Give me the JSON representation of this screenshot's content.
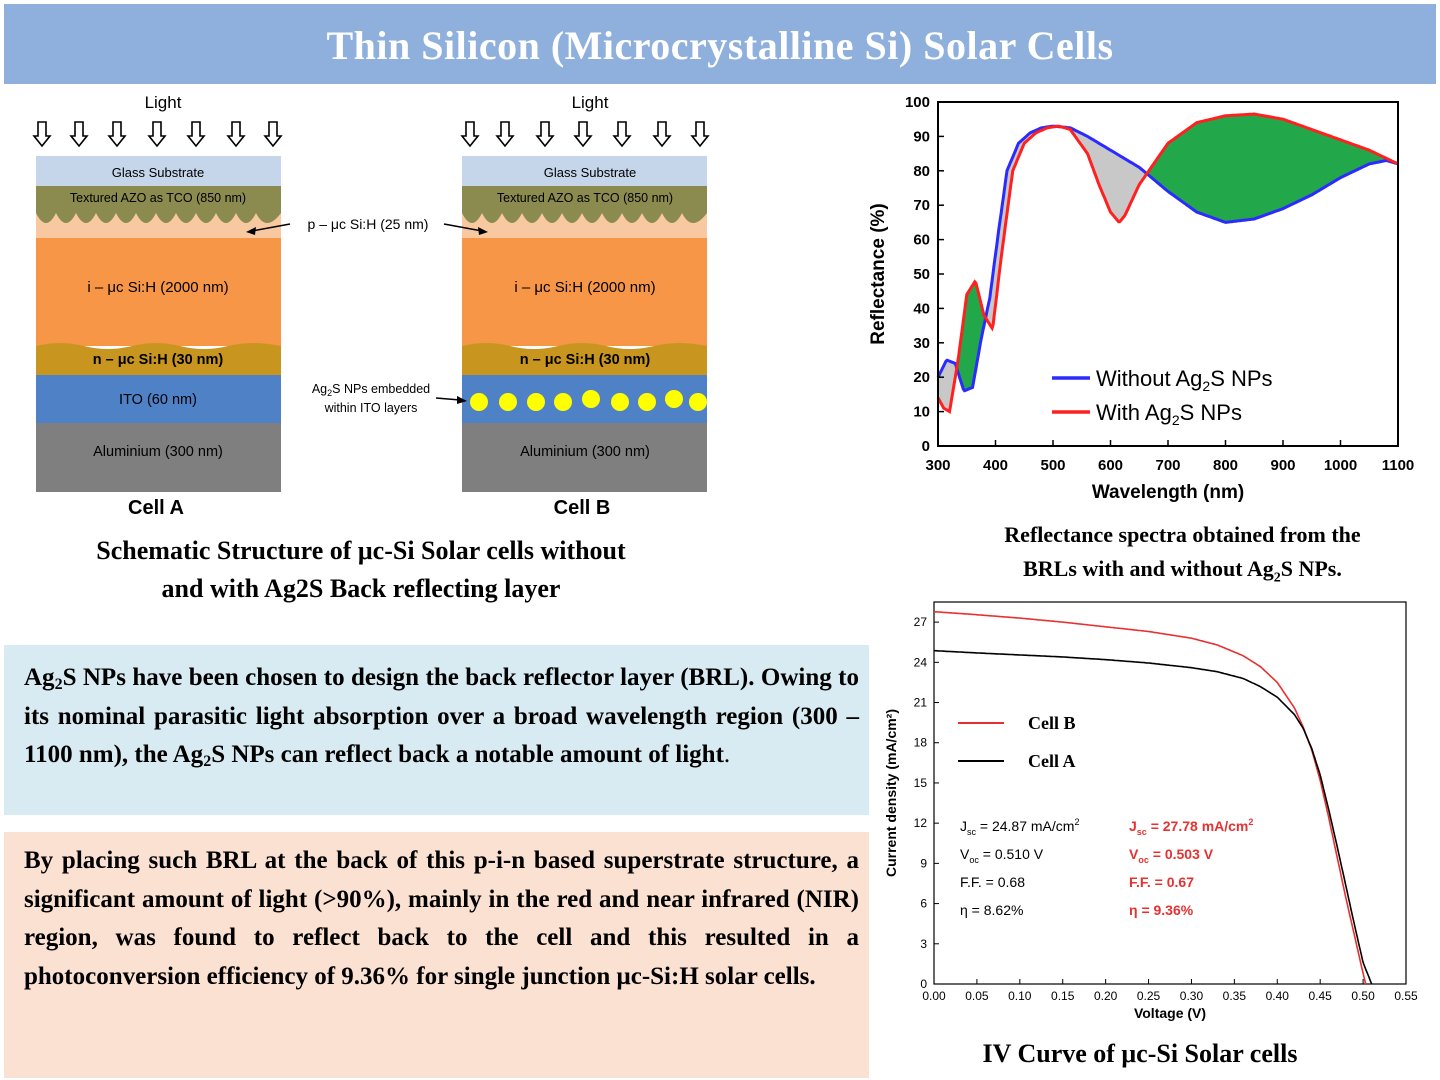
{
  "title": "Thin Silicon (Microcrystalline Si) Solar Cells",
  "schematic": {
    "light_label": "Light",
    "cell_a": {
      "name": "Cell A",
      "layers": {
        "glass": "Glass Substrate",
        "azo": "Textured AZO as TCO (850 nm)",
        "i_layer": "i – μc Si:H (2000 nm)",
        "n_layer": "n – μc Si:H (30 nm)",
        "ito": "ITO (60 nm)",
        "al": "Aluminium (300 nm)"
      }
    },
    "cell_b": {
      "name": "Cell B",
      "layers": {
        "glass": "Glass Substrate",
        "azo": "Textured AZO as TCO (850 nm)",
        "i_layer": "i – μc Si:H (2000 nm)",
        "n_layer": "n – μc Si:H (30 nm)",
        "al": "Aluminium (300 nm)"
      }
    },
    "p_layer_label": "p – μc Si:H (25 nm)",
    "np_label_line1": "Ag",
    "np_label_sub": "2",
    "np_label_rest": "S NPs embedded",
    "np_label_line2": "within ITO layers",
    "caption_line1": "Schematic Structure of μc-Si  Solar cells without",
    "caption_line2": "and with Ag2S  Back  reflecting  layer",
    "colors": {
      "glass": "#c5d5ea",
      "azo": "#8b8b50",
      "p": "#f8c8a0",
      "i": "#f79646",
      "n": "#c8961e",
      "ito": "#4f81c7",
      "al": "#7f7f7f",
      "np": "#ffff00"
    }
  },
  "info_box_1": {
    "t1": "Ag",
    "s1": "2",
    "t2": "S NPs have been chosen to design the back reflector layer (BRL). Owing to its nominal parasitic light absorption over a broad wavelength region (300 – 1100 nm), the Ag",
    "s2": "2",
    "t3": "S NPs can reflect back a notable amount of light",
    "t4": "."
  },
  "info_box_2": {
    "text": "By placing such BRL at the back of this p-i-n based superstrate structure, a significant amount of light (>90%), mainly in the red and near infrared (NIR) region, was found to reflect back to the cell and this resulted in a photoconversion efficiency of 9.36% for single junction μc-Si:H solar cells."
  },
  "reflectance_caption": {
    "line1": "Reflectance spectra obtained from the",
    "line2_a": "BRLs with and without Ag",
    "line2_sub": "2",
    "line2_b": "S NPs."
  },
  "iv_caption": "IV Curve of μc-Si  Solar cells",
  "chart_data": [
    {
      "type": "line",
      "xlabel": "Wavelength (nm)",
      "ylabel": "Reflectance (%)",
      "xlim": [
        300,
        1100
      ],
      "ylim": [
        0,
        100
      ],
      "xticks": [
        300,
        400,
        500,
        600,
        700,
        800,
        900,
        1000,
        1100
      ],
      "yticks": [
        0,
        10,
        20,
        30,
        40,
        50,
        60,
        70,
        80,
        90,
        100
      ],
      "legend_position": "bottom-right",
      "fill_colors": {
        "gain": "#22a84a",
        "loss": "#c8c8c8"
      },
      "series": [
        {
          "name_main": "Without Ag",
          "name_sub": "2",
          "name_tail": "S NPs",
          "color": "#2b2bff",
          "x": [
            300,
            315,
            330,
            345,
            360,
            375,
            390,
            405,
            420,
            440,
            460,
            480,
            500,
            530,
            560,
            580,
            600,
            620,
            650,
            700,
            750,
            800,
            850,
            900,
            950,
            1000,
            1050,
            1080,
            1100
          ],
          "y": [
            20,
            25,
            24,
            16,
            17,
            31,
            43,
            62,
            80,
            88,
            91,
            92.5,
            93,
            92.5,
            90,
            88,
            86,
            84,
            81,
            74,
            68,
            65,
            66,
            69,
            73,
            78,
            82,
            83,
            82
          ]
        },
        {
          "name_main": "With Ag",
          "name_sub": "2",
          "name_tail": "S NPs",
          "color": "#ff2020",
          "x": [
            300,
            310,
            320,
            335,
            350,
            365,
            380,
            395,
            410,
            430,
            450,
            470,
            490,
            510,
            530,
            560,
            580,
            600,
            615,
            625,
            650,
            700,
            750,
            800,
            850,
            900,
            950,
            1000,
            1050,
            1100
          ],
          "y": [
            14,
            11,
            10,
            25,
            44,
            48,
            38,
            34,
            55,
            80,
            88,
            91,
            92.5,
            93,
            92,
            85,
            76,
            68,
            65,
            67,
            76,
            88,
            94,
            96,
            96.5,
            95,
            92,
            89,
            86,
            82
          ]
        }
      ]
    },
    {
      "type": "line",
      "xlabel": "Voltage (V)",
      "ylabel": "Current density (mA/cm²)",
      "xlim": [
        0,
        0.55
      ],
      "ylim": [
        0,
        28.5
      ],
      "xticks": [
        "0.00",
        "0.05",
        "0.10",
        "0.15",
        "0.20",
        "0.25",
        "0.30",
        "0.35",
        "0.40",
        "0.45",
        "0.50",
        "0.55"
      ],
      "yticks": [
        0,
        3,
        6,
        9,
        12,
        15,
        18,
        21,
        24,
        27
      ],
      "legend_position": "top-left",
      "series": [
        {
          "name": "Cell B",
          "color": "#e83030",
          "x": [
            0,
            0.05,
            0.1,
            0.15,
            0.2,
            0.25,
            0.3,
            0.33,
            0.36,
            0.38,
            0.4,
            0.42,
            0.43,
            0.44,
            0.45,
            0.46,
            0.47,
            0.48,
            0.49,
            0.5,
            0.503
          ],
          "y": [
            27.78,
            27.55,
            27.3,
            27.0,
            26.65,
            26.3,
            25.8,
            25.3,
            24.5,
            23.7,
            22.5,
            20.6,
            19.2,
            17.5,
            15.2,
            12.4,
            9.4,
            6.4,
            3.6,
            0.8,
            0
          ]
        },
        {
          "name": "Cell A",
          "color": "#000000",
          "x": [
            0,
            0.05,
            0.1,
            0.15,
            0.2,
            0.25,
            0.3,
            0.33,
            0.36,
            0.38,
            0.4,
            0.42,
            0.43,
            0.44,
            0.45,
            0.46,
            0.47,
            0.48,
            0.49,
            0.5,
            0.51
          ],
          "y": [
            24.87,
            24.7,
            24.55,
            24.4,
            24.2,
            23.95,
            23.6,
            23.3,
            22.8,
            22.2,
            21.4,
            20.1,
            19.1,
            17.6,
            15.6,
            13.0,
            10.2,
            7.3,
            4.4,
            1.6,
            0
          ]
        }
      ],
      "annotations": {
        "cellA": {
          "jsc": "J",
          "jsc_sub": "sc",
          "jsc_val": " = 24.87 mA/cm",
          "jsc_sup": "2",
          "voc": "V",
          "voc_sub": "oc",
          "voc_val": " = 0.510 V",
          "ff": "F.F. = 0.68",
          "eta": "η = 8.62%"
        },
        "cellB": {
          "jsc": "J",
          "jsc_sub": "sc",
          "jsc_val": " = 27.78 mA/cm",
          "jsc_sup": "2",
          "voc": "V",
          "voc_sub": "oc",
          "voc_val": " = 0.503 V",
          "ff": "F.F. = 0.67",
          "eta": "η = 9.36%"
        }
      }
    }
  ]
}
